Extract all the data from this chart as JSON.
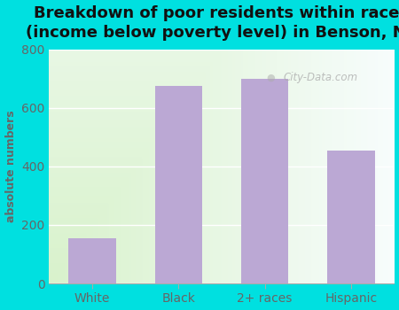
{
  "title": "Breakdown of poor residents within races\n(income below poverty level) in Benson, NC",
  "categories": [
    "White",
    "Black",
    "2+ races",
    "Hispanic"
  ],
  "values": [
    155,
    675,
    700,
    455
  ],
  "bar_color": "#bba8d4",
  "ylabel": "absolute numbers",
  "ylim": [
    0,
    800
  ],
  "yticks": [
    0,
    200,
    400,
    600,
    800
  ],
  "background_color": "#00e0e0",
  "title_fontsize": 13,
  "title_color": "#111111",
  "watermark": "City-Data.com",
  "plot_bg_left": "#d8edc8",
  "plot_bg_right": "#f5f5ff",
  "tick_color": "#666666",
  "spine_color": "#aaaaaa"
}
